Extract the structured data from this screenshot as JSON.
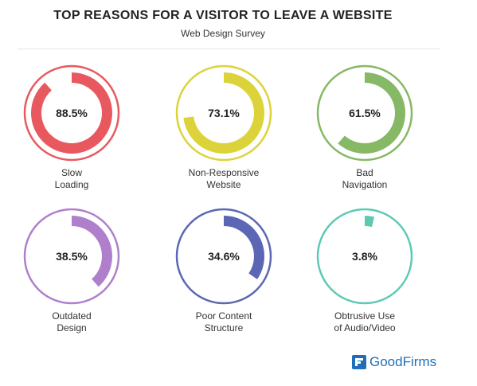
{
  "header": {
    "title": "TOP REASONS FOR A VISITOR TO LEAVE A WEBSITE",
    "subtitle": "Web Design Survey"
  },
  "brand": {
    "name": "GoodFirms",
    "icon": "goodfirms-logo-icon",
    "color": "#1f6fb8"
  },
  "chart_data": {
    "type": "pie",
    "title": "TOP REASONS FOR A VISITOR TO LEAVE A WEBSITE",
    "subtitle": "Web Design Survey",
    "unit": "%",
    "items": [
      {
        "label": "Slow\nLoading",
        "value": 88.5,
        "display": "88.5%",
        "color": "#e8595f"
      },
      {
        "label": "Non-Responsive\nWebsite",
        "value": 73.1,
        "display": "73.1%",
        "color": "#dcd33b"
      },
      {
        "label": "Bad\nNavigation",
        "value": 61.5,
        "display": "61.5%",
        "color": "#86b865"
      },
      {
        "label": "Outdated\nDesign",
        "value": 38.5,
        "display": "38.5%",
        "color": "#b07fcb"
      },
      {
        "label": "Poor Content\nStructure",
        "value": 34.6,
        "display": "34.6%",
        "color": "#5b67b4"
      },
      {
        "label": "Obtrusive Use\nof Audio/Video",
        "value": 3.8,
        "display": "3.8%",
        "color": "#5ec9b3"
      }
    ]
  }
}
